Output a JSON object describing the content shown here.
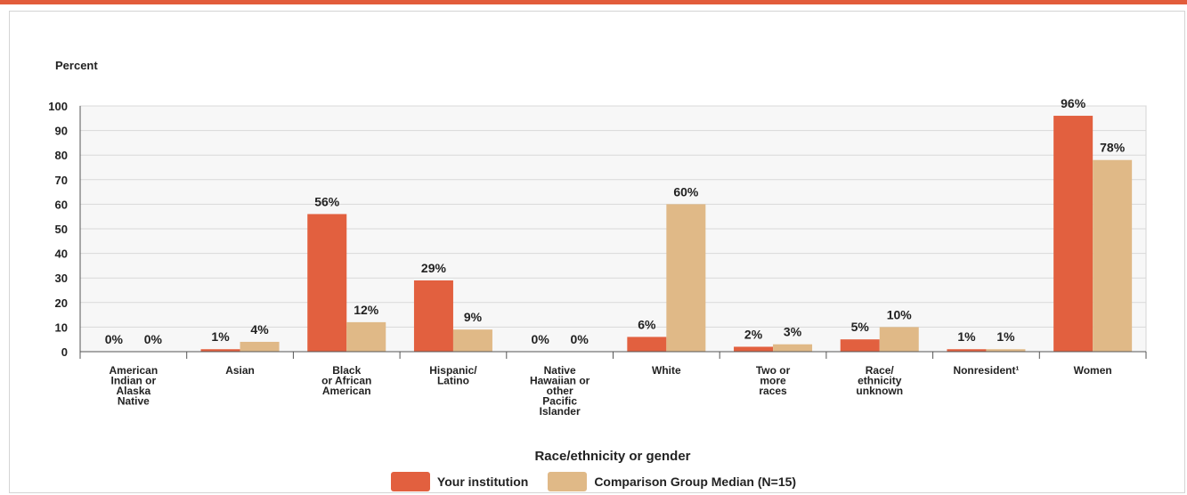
{
  "colors": {
    "accent": "#e25c3b",
    "institution": "#e2603f",
    "comparison": "#e0b987",
    "grid": "#d9d9d9",
    "axis": "#555555"
  },
  "chart_data": {
    "type": "bar",
    "ylabel": "Percent",
    "xlabel": "Race/ethnicity or gender",
    "ylim": [
      0,
      100
    ],
    "yticks": [
      0,
      10,
      20,
      30,
      40,
      50,
      60,
      70,
      80,
      90,
      100
    ],
    "grid": true,
    "legend_position": "bottom-center",
    "categories": [
      "American Indian or Alaska Native",
      "Asian",
      "Black or African American",
      "Hispanic/ Latino",
      "Native Hawaiian or other Pacific Islander",
      "White",
      "Two or more races",
      "Race/ ethnicity unknown",
      "Nonresident¹",
      "Women"
    ],
    "category_lines": [
      [
        "American",
        "Indian or",
        "Alaska",
        "Native"
      ],
      [
        "Asian"
      ],
      [
        "Black",
        "or African",
        "American"
      ],
      [
        "Hispanic/",
        "Latino"
      ],
      [
        "Native",
        "Hawaiian or",
        "other",
        "Pacific",
        "Islander"
      ],
      [
        "White"
      ],
      [
        "Two or",
        "more",
        "races"
      ],
      [
        "Race/",
        "ethnicity",
        "unknown"
      ],
      [
        "Nonresident¹"
      ],
      [
        "Women"
      ]
    ],
    "series": [
      {
        "name": "Your institution",
        "values": [
          0,
          1,
          56,
          29,
          0,
          6,
          2,
          5,
          1,
          96
        ],
        "labels": [
          "0%",
          "1%",
          "56%",
          "29%",
          "0%",
          "6%",
          "2%",
          "5%",
          "1%",
          "96%"
        ]
      },
      {
        "name": "Comparison Group Median (N=15)",
        "values": [
          0,
          4,
          12,
          9,
          0,
          60,
          3,
          10,
          1,
          78
        ],
        "labels": [
          "0%",
          "4%",
          "12%",
          "9%",
          "0%",
          "60%",
          "3%",
          "10%",
          "1%",
          "78%"
        ]
      }
    ]
  }
}
